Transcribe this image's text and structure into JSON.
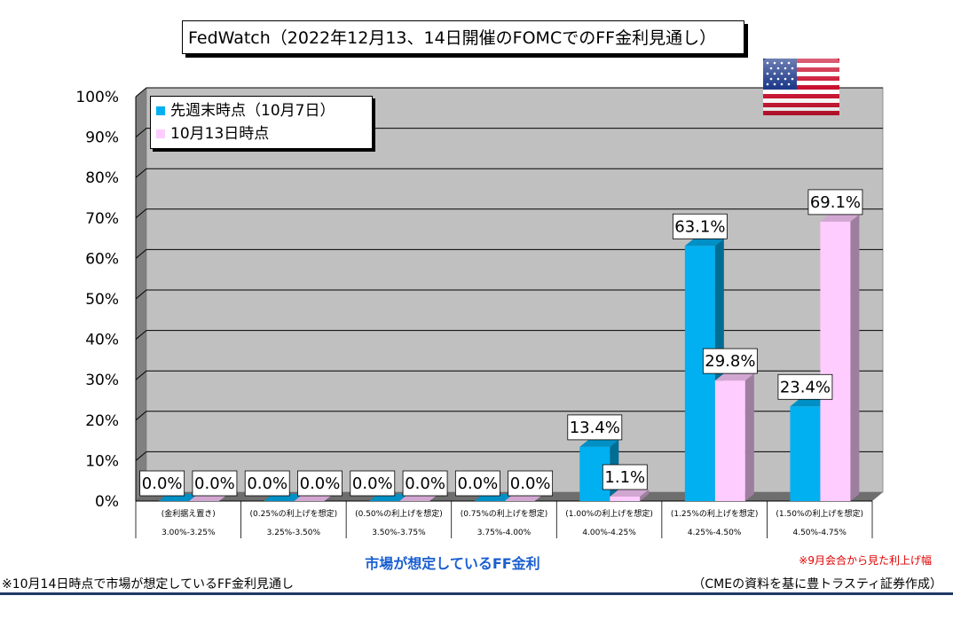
{
  "title": "FedWatch（2022年12月13、14日開催のFOMCでのFF金利見通し）",
  "xaxis_title": "市場が想定しているFF金利",
  "note_red": "※9月会合から見た利上げ幅",
  "footnote_left": "※10月14日時点で市場が想定しているFF金利見通し",
  "footnote_right": "（CMEの資料を基に豊トラスティ証券作成）",
  "flag_icon": "us-flag-icon",
  "colors": {
    "series1": "#00b0f0",
    "series2": "#ffccff",
    "plot_bg": "#c0c0c0",
    "xaxis_title": "#1a5fd0",
    "note": "#e00000"
  },
  "chart_data": {
    "type": "bar",
    "title": "FedWatch（2022年12月13、14日開催のFOMCでのFF金利見通し）",
    "xlabel": "市場が想定しているFF金利",
    "ylabel": "",
    "ylim": [
      0,
      100
    ],
    "yticks": [
      "0%",
      "10%",
      "20%",
      "30%",
      "40%",
      "50%",
      "60%",
      "70%",
      "80%",
      "90%",
      "100%"
    ],
    "categories": [
      {
        "top": "(金利据え置き)",
        "bottom": "3.00%-3.25%"
      },
      {
        "top": "(0.25%の利上げを想定)",
        "bottom": "3.25%-3.50%"
      },
      {
        "top": "(0.50%の利上げを想定)",
        "bottom": "3.50%-3.75%"
      },
      {
        "top": "(0.75%の利上げを想定)",
        "bottom": "3.75%-4.00%"
      },
      {
        "top": "(1.00%の利上げを想定)",
        "bottom": "4.00%-4.25%"
      },
      {
        "top": "(1.25%の利上げを想定)",
        "bottom": "4.25%-4.50%"
      },
      {
        "top": "(1.50%の利上げを想定)",
        "bottom": "4.50%-4.75%"
      }
    ],
    "series": [
      {
        "name": "先週末時点（10月7日）",
        "values": [
          0.0,
          0.0,
          0.0,
          0.0,
          13.4,
          63.1,
          23.4
        ],
        "labels": [
          "0.0%",
          "0.0%",
          "0.0%",
          "0.0%",
          "13.4%",
          "63.1%",
          "23.4%"
        ]
      },
      {
        "name": "10月13日時点",
        "values": [
          0.0,
          0.0,
          0.0,
          0.0,
          1.1,
          29.8,
          69.1
        ],
        "labels": [
          "0.0%",
          "0.0%",
          "0.0%",
          "0.0%",
          "1.1%",
          "29.8%",
          "69.1%"
        ]
      }
    ],
    "grid": true,
    "legend_position": "top-left"
  }
}
